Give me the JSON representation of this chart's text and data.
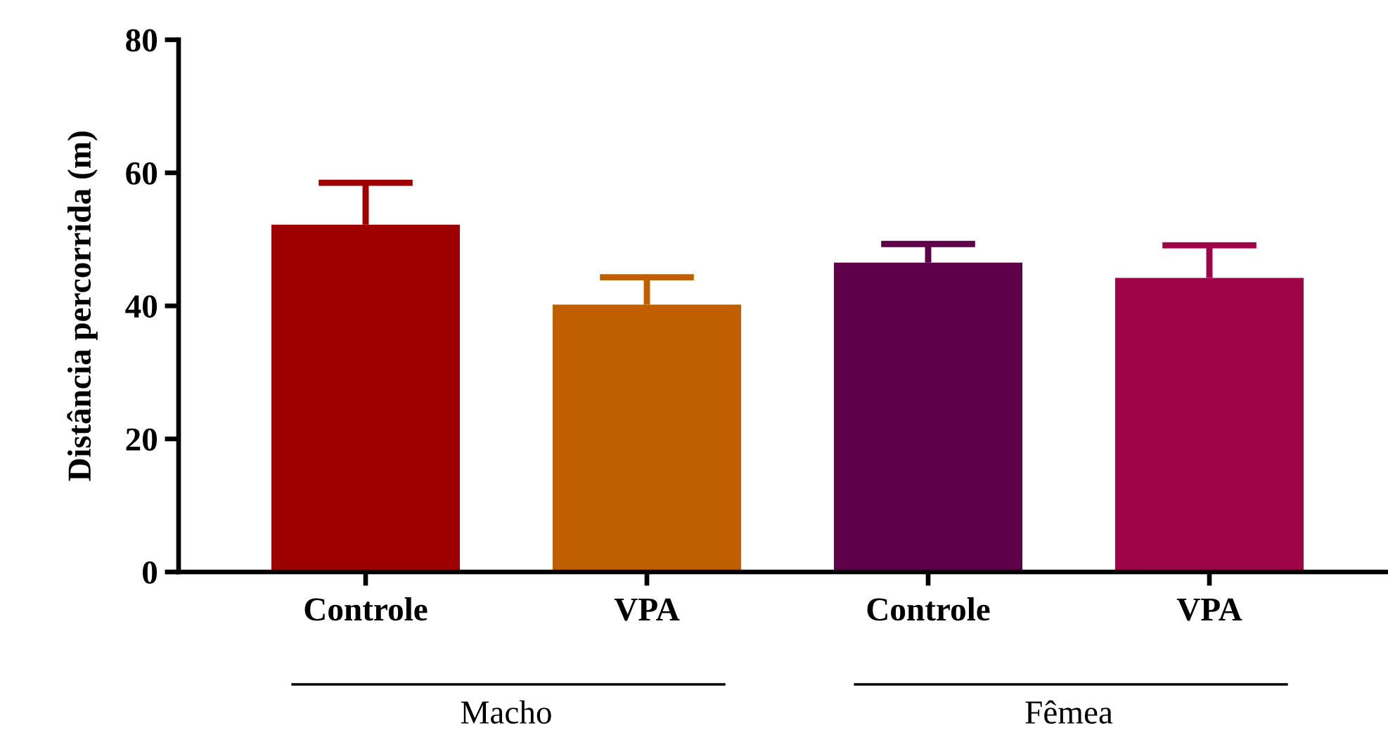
{
  "chart_data": {
    "type": "bar",
    "ylabel": "Distância percorrida (m)",
    "categories": [
      "Controle",
      "VPA",
      "Controle",
      "VPA"
    ],
    "values": [
      52.2,
      40.2,
      46.5,
      44.2
    ],
    "errors": [
      [
        52.2,
        58.5
      ],
      [
        40.2,
        44.3
      ],
      [
        46.5,
        49.3
      ],
      [
        44.2,
        49.1
      ]
    ],
    "colors": [
      "#9e0000",
      "#c05f00",
      "#5f004b",
      "#9e0549"
    ],
    "ylim": [
      0,
      80
    ],
    "yticks": [
      0,
      20,
      40,
      60,
      80
    ],
    "grid": false,
    "legend": false,
    "annotations": [
      "Macho",
      "Fêmea"
    ]
  }
}
